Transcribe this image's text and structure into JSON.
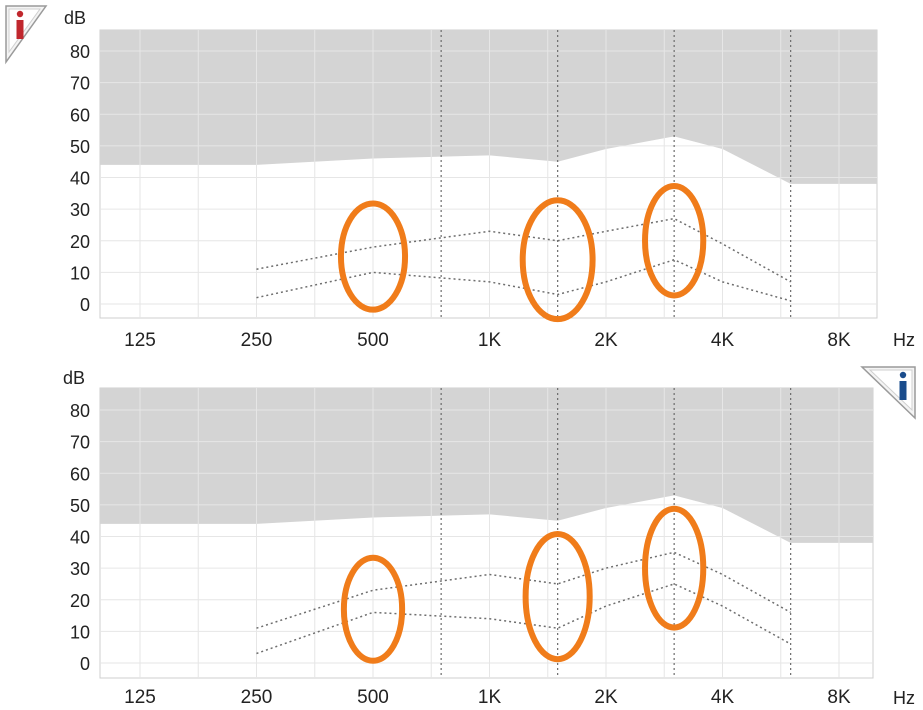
{
  "chart_data": [
    {
      "type": "line",
      "title": "",
      "ylabel": "dB",
      "xlabel": "Hz",
      "ylim": [
        0,
        80
      ],
      "yticks": [
        "80",
        "70",
        "60",
        "50",
        "40",
        "30",
        "20",
        "10",
        "0"
      ],
      "x_scale": "log2",
      "categories": [
        "125",
        "250",
        "500",
        "1K",
        "2K",
        "4K",
        "8K"
      ],
      "minor_frequencies_dotted": [
        "750",
        "1.5K",
        "3K",
        "6K"
      ],
      "info_icon_position": "top-left",
      "info_icon_color": "#c0272d",
      "threshold_area": {
        "fill": "#d4d4d4",
        "points": [
          {
            "x": "125",
            "y": 44
          },
          {
            "x": "250",
            "y": 44
          },
          {
            "x": "500",
            "y": 46
          },
          {
            "x": "1K",
            "y": 47
          },
          {
            "x": "1.5K",
            "y": 45
          },
          {
            "x": "2K",
            "y": 49
          },
          {
            "x": "3K",
            "y": 53
          },
          {
            "x": "4K",
            "y": 49
          },
          {
            "x": "6K",
            "y": 38
          },
          {
            "x": "8K",
            "y": 38
          }
        ]
      },
      "series": [
        {
          "values": [
            {
              "x": "250",
              "y": 11
            },
            {
              "x": "500",
              "y": 18
            },
            {
              "x": "1K",
              "y": 23
            },
            {
              "x": "1.5K",
              "y": 20
            },
            {
              "x": "2K",
              "y": 23
            },
            {
              "x": "3K",
              "y": 27
            },
            {
              "x": "4K",
              "y": 19
            },
            {
              "x": "6K",
              "y": 7
            }
          ]
        },
        {
          "values": [
            {
              "x": "250",
              "y": 2
            },
            {
              "x": "500",
              "y": 10
            },
            {
              "x": "1K",
              "y": 7
            },
            {
              "x": "1.5K",
              "y": 3
            },
            {
              "x": "2K",
              "y": 7
            },
            {
              "x": "3K",
              "y": 14
            },
            {
              "x": "4K",
              "y": 7
            },
            {
              "x": "6K",
              "y": 1
            }
          ]
        }
      ],
      "annotations_color": "#f07c1a",
      "annotations": [
        {
          "x": "500",
          "y_center": 15,
          "x_span_octaves": 0.55,
          "y_span": 26
        },
        {
          "x": "1.5K",
          "y_center": 14,
          "x_span_octaves": 0.6,
          "y_span": 30
        },
        {
          "x": "3K",
          "y_center": 20,
          "x_span_octaves": 0.5,
          "y_span": 27
        }
      ]
    },
    {
      "type": "line",
      "title": "",
      "ylabel": "dB",
      "xlabel": "Hz",
      "ylim": [
        0,
        80
      ],
      "yticks": [
        "80",
        "70",
        "60",
        "50",
        "40",
        "30",
        "20",
        "10",
        "0"
      ],
      "x_scale": "log2",
      "categories": [
        "125",
        "250",
        "500",
        "1K",
        "2K",
        "4K",
        "8K"
      ],
      "minor_frequencies_dotted": [
        "750",
        "1.5K",
        "3K",
        "6K"
      ],
      "info_icon_position": "top-right",
      "info_icon_color": "#1a4c8c",
      "threshold_area": {
        "fill": "#d4d4d4",
        "points": [
          {
            "x": "125",
            "y": 44
          },
          {
            "x": "250",
            "y": 44
          },
          {
            "x": "500",
            "y": 46
          },
          {
            "x": "1K",
            "y": 47
          },
          {
            "x": "1.5K",
            "y": 45
          },
          {
            "x": "2K",
            "y": 49
          },
          {
            "x": "3K",
            "y": 53
          },
          {
            "x": "4K",
            "y": 49
          },
          {
            "x": "6K",
            "y": 38
          },
          {
            "x": "8K",
            "y": 38
          }
        ]
      },
      "series": [
        {
          "values": [
            {
              "x": "250",
              "y": 11
            },
            {
              "x": "500",
              "y": 23
            },
            {
              "x": "1K",
              "y": 28
            },
            {
              "x": "1.5K",
              "y": 25
            },
            {
              "x": "2K",
              "y": 30
            },
            {
              "x": "3K",
              "y": 35
            },
            {
              "x": "4K",
              "y": 28
            },
            {
              "x": "6K",
              "y": 16
            }
          ]
        },
        {
          "values": [
            {
              "x": "250",
              "y": 3
            },
            {
              "x": "500",
              "y": 16
            },
            {
              "x": "1K",
              "y": 14
            },
            {
              "x": "1.5K",
              "y": 11
            },
            {
              "x": "2K",
              "y": 18
            },
            {
              "x": "3K",
              "y": 25
            },
            {
              "x": "4K",
              "y": 18
            },
            {
              "x": "6K",
              "y": 6
            }
          ]
        }
      ],
      "annotations_color": "#f07c1a",
      "annotations": [
        {
          "x": "500",
          "y_center": 17,
          "x_span_octaves": 0.5,
          "y_span": 25
        },
        {
          "x": "1.5K",
          "y_center": 21,
          "x_span_octaves": 0.55,
          "y_span": 32
        },
        {
          "x": "3K",
          "y_center": 30,
          "x_span_octaves": 0.5,
          "y_span": 30
        }
      ]
    }
  ]
}
